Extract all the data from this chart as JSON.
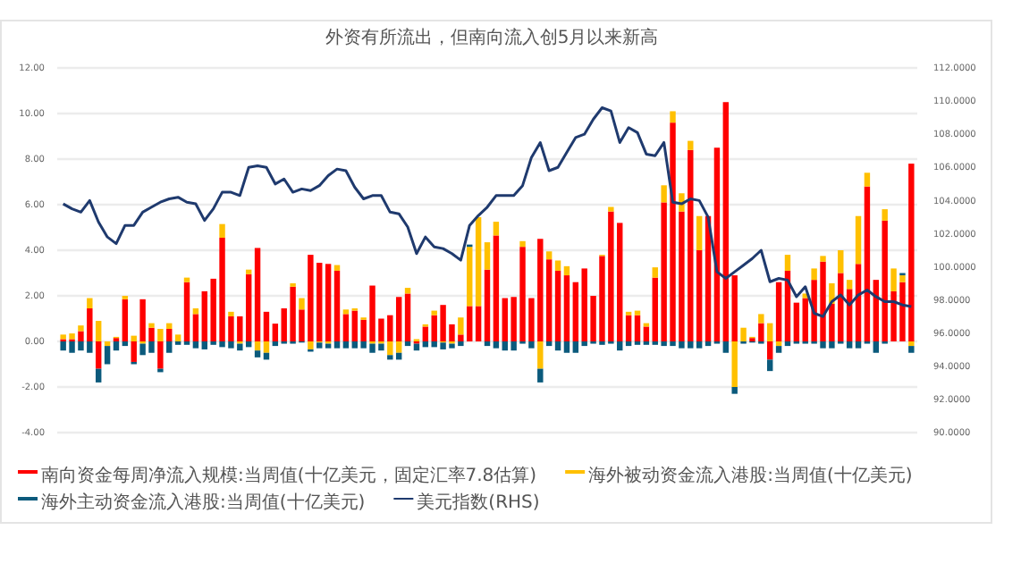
{
  "chart_data": {
    "type": "bar",
    "title": "外资有所流出，但南向流入创5月以来新高",
    "stacked": true,
    "grid": "y",
    "legend": "bottom",
    "marker": "none",
    "categories": [
      null,
      null,
      null,
      null,
      null,
      null,
      null,
      null,
      null,
      null,
      null,
      null,
      null,
      null,
      null,
      null,
      null,
      null,
      null,
      null,
      null,
      null,
      null,
      null,
      null,
      null,
      null,
      null,
      null,
      null,
      null,
      null,
      null,
      null,
      null,
      null,
      null,
      null,
      null,
      null,
      null,
      null,
      null,
      null,
      null,
      null,
      null,
      null,
      null,
      null,
      null,
      null,
      null,
      null,
      null,
      null,
      null,
      null,
      null,
      null,
      null,
      null,
      null,
      null,
      null,
      null,
      null,
      null,
      null,
      null,
      null,
      null,
      null,
      null,
      null,
      null,
      null,
      null,
      null,
      null,
      null,
      null,
      null,
      null,
      null,
      null,
      null,
      null,
      null,
      null,
      null,
      null,
      null,
      null,
      null,
      null,
      null
    ],
    "ylim": [
      -4,
      12
    ],
    "yticks": [
      {
        "value": -4,
        "label": "-4.00"
      },
      {
        "value": -2,
        "label": "-2.00"
      },
      {
        "value": 0,
        "label": "0.00"
      },
      {
        "value": 2,
        "label": "2.00"
      },
      {
        "value": 4,
        "label": "4.00"
      },
      {
        "value": 6,
        "label": "6.00"
      },
      {
        "value": 8,
        "label": "8.00"
      },
      {
        "value": 10,
        "label": "10.00"
      },
      {
        "value": 12,
        "label": "12.00"
      }
    ],
    "y2lim": [
      90,
      112
    ],
    "y2ticks": [
      {
        "value": 90,
        "label": "90.0000"
      },
      {
        "value": 92,
        "label": "92.0000"
      },
      {
        "value": 94,
        "label": "94.0000"
      },
      {
        "value": 96,
        "label": "96.0000"
      },
      {
        "value": 98,
        "label": "98.0000"
      },
      {
        "value": 100,
        "label": "100.0000"
      },
      {
        "value": 102,
        "label": "102.0000"
      },
      {
        "value": 104,
        "label": "104.0000"
      },
      {
        "value": 106,
        "label": "106.0000"
      },
      {
        "value": 108,
        "label": "108.0000"
      },
      {
        "value": 110,
        "label": "110.0000"
      },
      {
        "value": 112,
        "label": "112.0000"
      }
    ],
    "series": [
      {
        "name": "南向资金每周净流入规模:当周值(十亿美元，固定汇率7.8估算)",
        "color": "#ff0000",
        "values": [
          0.1,
          0.1,
          0.45,
          1.45,
          -1.2,
          0,
          0.15,
          1.85,
          -0.9,
          1.85,
          0.6,
          -1.2,
          0.55,
          0,
          2.6,
          1.2,
          2.2,
          2.75,
          4.55,
          1.1,
          1.1,
          2.95,
          4.1,
          1.3,
          0.78,
          1.45,
          2.4,
          1.4,
          3.8,
          3.45,
          3.4,
          3.1,
          1.2,
          1.35,
          0.95,
          2.45,
          1.0,
          1.15,
          1.95,
          2.1,
          -0.1,
          0.65,
          1.15,
          1.6,
          0.75,
          0.3,
          1.55,
          1.55,
          3.15,
          4.65,
          1.9,
          1.95,
          4.15,
          1.9,
          4.5,
          3.6,
          3.1,
          2.9,
          2.6,
          3.2,
          2.0,
          3.75,
          5.7,
          5.2,
          1.15,
          1.15,
          0.65,
          2.8,
          6.1,
          9.6,
          5.7,
          8.4,
          4.0,
          5.5,
          8.5,
          10.5,
          2.9,
          0,
          0.15,
          0.8,
          -0.8,
          2.6,
          3.1,
          1.7,
          1.9,
          2.7,
          3.5,
          1.65,
          3.0,
          2.3,
          3.4,
          6.8,
          2.7,
          5.3,
          2.2,
          2.6,
          7.8
        ]
      },
      {
        "name": "海外被动资金流入港股:当周值(十亿美元)",
        "color": "#ffc000",
        "values": [
          0.2,
          0.25,
          0.25,
          0.45,
          0.9,
          -0.2,
          0.05,
          0.15,
          0.25,
          -0.1,
          0.2,
          0.55,
          0.25,
          0.3,
          0.2,
          0.25,
          0,
          0,
          0.6,
          0.2,
          -0.1,
          0.2,
          -0.4,
          -0.5,
          0,
          0,
          0.15,
          0.5,
          -0.35,
          -0.05,
          -0.1,
          0.25,
          0.2,
          0.1,
          0.1,
          -0.1,
          -0.1,
          -0.6,
          -0.5,
          0.25,
          0.1,
          0.1,
          0.2,
          -0.05,
          -0.1,
          0.75,
          2.6,
          3.9,
          1.2,
          0.6,
          0,
          0,
          0.25,
          0,
          -1.2,
          0.35,
          0.45,
          0.4,
          0,
          0,
          0,
          0.05,
          0.2,
          0,
          0.15,
          0.2,
          0.15,
          0.45,
          0.75,
          0.5,
          0.8,
          0.4,
          1.5,
          0,
          0,
          0,
          -2.0,
          0.6,
          0.05,
          0.4,
          0.8,
          -0.2,
          0.7,
          0,
          0.2,
          0.5,
          0.25,
          0.9,
          1.0,
          0.4,
          2.1,
          0.6,
          0,
          0.5,
          1.0,
          0.3,
          -0.2
        ]
      },
      {
        "name": "海外主动资金流入港股:当周值(十亿美元)",
        "color": "#0b5a7c",
        "values": [
          -0.4,
          -0.5,
          -0.4,
          -0.5,
          -0.6,
          -0.8,
          -0.4,
          -0.2,
          -0.1,
          -0.5,
          -0.5,
          -0.15,
          -0.5,
          -0.15,
          -0.15,
          -0.3,
          -0.35,
          -0.15,
          -0.25,
          -0.3,
          -0.3,
          -0.25,
          -0.3,
          -0.3,
          -0.2,
          -0.1,
          -0.1,
          -0.05,
          -0.1,
          -0.25,
          -0.2,
          -0.3,
          -0.3,
          -0.3,
          -0.3,
          -0.4,
          -0.3,
          -0.2,
          -0.3,
          -0.2,
          -0.3,
          -0.25,
          -0.25,
          -0.3,
          -0.2,
          -0.2,
          0.1,
          null,
          -0.2,
          -0.3,
          -0.4,
          -0.4,
          -0.1,
          -0.3,
          -0.6,
          -0.2,
          -0.4,
          -0.5,
          -0.5,
          -0.2,
          -0.1,
          -0.15,
          -0.1,
          -0.4,
          -0.2,
          -0.15,
          -0.15,
          -0.15,
          -0.2,
          -0.2,
          -0.3,
          -0.3,
          -0.3,
          -0.2,
          -0.1,
          -0.5,
          -0.3,
          -0.1,
          -0.05,
          -0.1,
          -0.5,
          -0.3,
          -0.2,
          -0.1,
          -0.1,
          -0.1,
          -0.3,
          -0.3,
          -0.1,
          -0.3,
          -0.3,
          -0.1,
          -0.5,
          -0.1,
          0,
          0.1,
          -0.3
        ]
      },
      {
        "name": "美元指数(RHS)",
        "type": "line",
        "axis": "y2",
        "color": "#1f3a6e",
        "values": [
          103.8,
          103.5,
          103.3,
          104.0,
          102.7,
          101.8,
          101.4,
          102.5,
          102.5,
          103.3,
          103.6,
          103.9,
          104.1,
          104.2,
          103.9,
          103.8,
          102.8,
          103.5,
          104.5,
          104.5,
          104.3,
          106.0,
          106.1,
          106.0,
          105.0,
          105.3,
          104.5,
          104.7,
          104.6,
          104.9,
          105.5,
          105.9,
          105.8,
          104.8,
          104.1,
          104.3,
          104.3,
          103.3,
          103.2,
          102.4,
          100.8,
          101.8,
          101.2,
          101.1,
          100.8,
          100.4,
          102.5,
          103.1,
          103.6,
          104.3,
          104.3,
          104.3,
          104.9,
          106.6,
          107.5,
          105.8,
          106.0,
          106.9,
          107.8,
          108.0,
          108.9,
          109.6,
          109.4,
          107.5,
          108.4,
          108.1,
          106.8,
          106.7,
          107.5,
          103.9,
          103.8,
          104.1,
          104.0,
          103.0,
          99.7,
          99.3,
          99.7,
          100.1,
          100.5,
          101.0,
          99.1,
          99.3,
          99.2,
          98.2,
          98.8,
          97.2,
          97.0,
          97.9,
          98.3,
          97.7,
          98.3,
          98.6,
          98.2,
          97.9,
          97.9,
          97.7,
          97.6
        ]
      }
    ]
  }
}
